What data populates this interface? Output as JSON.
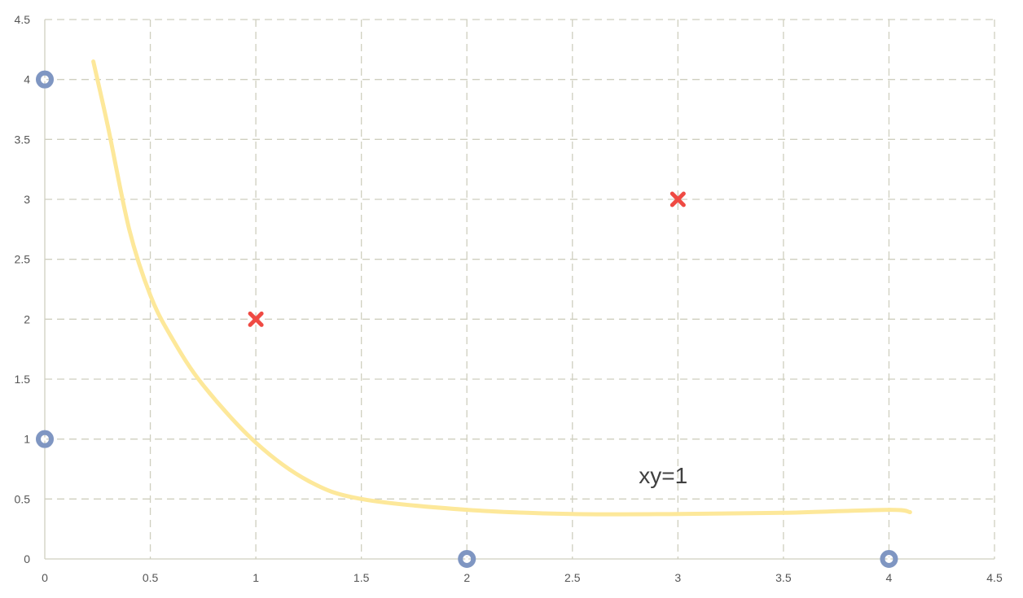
{
  "chart_data": {
    "type": "scatter",
    "title": "",
    "xlabel": "",
    "ylabel": "",
    "xlim": [
      0,
      4.5
    ],
    "ylim": [
      0,
      4.5
    ],
    "x_ticks": [
      "0",
      "0.5",
      "1",
      "1.5",
      "2",
      "2.5",
      "3",
      "3.5",
      "4",
      "4.5"
    ],
    "y_ticks": [
      "0",
      "0.5",
      "1",
      "1.5",
      "2",
      "2.5",
      "3",
      "3.5",
      "4",
      "4.5"
    ],
    "grid": true,
    "series": [
      {
        "marker": "circle",
        "color": "#7f96c2",
        "points": [
          [
            0,
            4
          ],
          [
            0,
            1
          ],
          [
            2,
            0
          ],
          [
            4,
            0
          ]
        ]
      },
      {
        "marker": "x",
        "color": "#ef4a43",
        "points": [
          [
            1,
            2
          ],
          [
            3,
            3
          ]
        ]
      },
      {
        "kind": "curve",
        "color": "#fde89a",
        "points": [
          [
            0.23,
            4.15
          ],
          [
            0.3,
            3.6
          ],
          [
            0.4,
            2.75
          ],
          [
            0.5,
            2.2
          ],
          [
            0.6,
            1.85
          ],
          [
            0.75,
            1.45
          ],
          [
            1.0,
            0.97
          ],
          [
            1.25,
            0.65
          ],
          [
            1.5,
            0.5
          ],
          [
            2.0,
            0.41
          ],
          [
            2.5,
            0.375
          ],
          [
            3.0,
            0.375
          ],
          [
            3.5,
            0.385
          ],
          [
            4.0,
            0.41
          ],
          [
            4.1,
            0.39
          ]
        ]
      }
    ],
    "annotations": [
      {
        "text": "xy=1",
        "x": 2.93,
        "y": 0.7
      }
    ]
  }
}
